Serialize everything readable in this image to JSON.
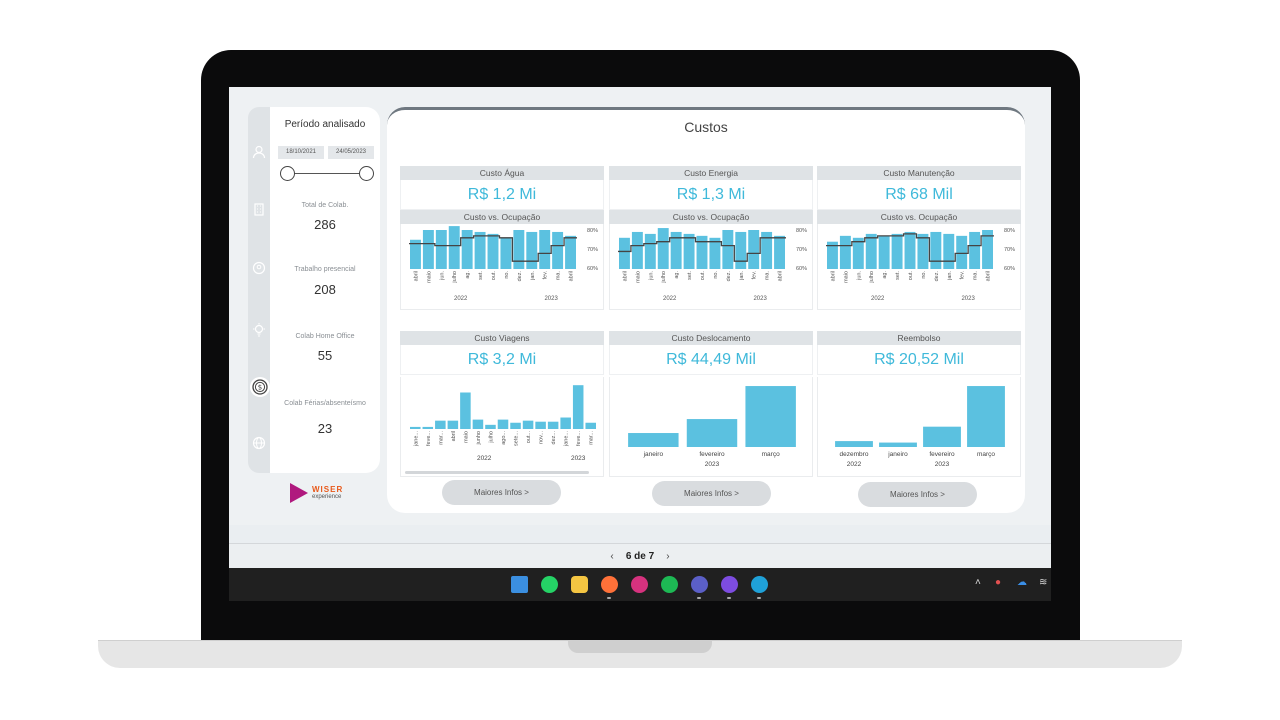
{
  "filters": {
    "title": "Período analisado",
    "date_start": "18/10/2021",
    "date_end": "24/05/2023",
    "stats": [
      {
        "label": "Total de Colab.",
        "value": "286"
      },
      {
        "label": "Trabalho presencial",
        "value": "208"
      },
      {
        "label": "Colab Home Office",
        "value": "55"
      },
      {
        "label": "Colab Férias/absenteísmo",
        "value": "23"
      }
    ]
  },
  "rail": {
    "icons": [
      "user-icon",
      "building-icon",
      "location-icon",
      "lightbulb-icon",
      "dollar-icon",
      "globe-icon"
    ]
  },
  "logo": {
    "word": "WISER",
    "sub": "experience"
  },
  "main": {
    "title": "Custos",
    "subheader": "Custo vs. Ocupação",
    "more_label": "Maiores Infos >",
    "cards": [
      {
        "label": "Custo Água",
        "value": "R$ 1,2 Mi"
      },
      {
        "label": "Custo Energia",
        "value": "R$ 1,3 Mi"
      },
      {
        "label": "Custo Manutenção",
        "value": "R$ 68 Mil"
      },
      {
        "label": "Custo Viagens",
        "value": "R$ 3,2 Mi"
      },
      {
        "label": "Custo Deslocamento",
        "value": "R$ 44,49 Mil"
      },
      {
        "label": "Reembolso",
        "value": "R$ 20,52 Mil"
      }
    ]
  },
  "chart_data": [
    {
      "type": "bar",
      "title": "Custo vs. Ocupação",
      "categories": [
        "abril",
        "maio",
        "jun.",
        "julho",
        "ag.",
        "set.",
        "out.",
        "no.",
        "dez.",
        "jan.",
        "fev.",
        "ma.",
        "abril"
      ],
      "year_labels": [
        "2022",
        "2023"
      ],
      "series": [],
      "values": [
        0.75,
        0.8,
        0.8,
        0.82,
        0.8,
        0.79,
        0.78,
        0.76,
        0.8,
        0.79,
        0.8,
        0.79,
        0.77
      ],
      "line_values": [
        0.73,
        0.73,
        0.72,
        0.72,
        0.76,
        0.77,
        0.77,
        0.76,
        0.64,
        0.64,
        0.68,
        0.72,
        0.76
      ],
      "y2_ticks": [
        "80%",
        "70%",
        "60%"
      ],
      "y2lim": [
        0.6,
        0.8
      ]
    },
    {
      "type": "bar",
      "title": "Custo vs. Ocupação",
      "categories": [
        "abril",
        "maio",
        "jun.",
        "julho",
        "ag.",
        "set.",
        "out.",
        "no.",
        "dez.",
        "jan.",
        "fev.",
        "ma.",
        "abril"
      ],
      "year_labels": [
        "2022",
        "2023"
      ],
      "series": [],
      "values": [
        0.76,
        0.79,
        0.78,
        0.81,
        0.79,
        0.78,
        0.77,
        0.76,
        0.8,
        0.79,
        0.8,
        0.79,
        0.77
      ],
      "line_values": [
        0.69,
        0.72,
        0.73,
        0.74,
        0.76,
        0.76,
        0.74,
        0.74,
        0.72,
        0.64,
        0.68,
        0.76,
        0.76
      ],
      "y2_ticks": [
        "80%",
        "70%",
        "60%"
      ],
      "y2lim": [
        0.6,
        0.8
      ]
    },
    {
      "type": "bar",
      "title": "Custo vs. Ocupação",
      "categories": [
        "abril",
        "maio",
        "jun.",
        "julho",
        "ag.",
        "set.",
        "out.",
        "no.",
        "dez.",
        "jan.",
        "fev.",
        "ma.",
        "abril"
      ],
      "year_labels": [
        "2022",
        "2023"
      ],
      "series": [],
      "values": [
        0.74,
        0.77,
        0.76,
        0.78,
        0.77,
        0.78,
        0.79,
        0.78,
        0.79,
        0.78,
        0.77,
        0.79,
        0.8
      ],
      "line_values": [
        0.72,
        0.72,
        0.74,
        0.76,
        0.77,
        0.77,
        0.78,
        0.76,
        0.64,
        0.64,
        0.68,
        0.72,
        0.77
      ],
      "y2_ticks": [
        "80%",
        "70%",
        "60%"
      ],
      "y2lim": [
        0.6,
        0.8
      ]
    },
    {
      "type": "bar",
      "title": "Custo Viagens",
      "categories": [
        "jane...",
        "feve...",
        "mar...",
        "abril",
        "maio",
        "junho",
        "julho",
        "ago...",
        "sete...",
        "out...",
        "nov...",
        "dez...",
        "jane...",
        "feve...",
        "mar..."
      ],
      "year_labels": [
        "2022",
        "2023"
      ],
      "values": [
        2,
        2,
        8,
        8,
        35,
        9,
        4,
        9,
        6,
        8,
        7,
        7,
        11,
        42,
        6
      ]
    },
    {
      "type": "bar",
      "title": "Custo Deslocamento",
      "categories": [
        "janeiro",
        "fevereiro",
        "março"
      ],
      "year_labels": [
        "2023"
      ],
      "values": [
        11,
        22,
        48
      ]
    },
    {
      "type": "bar",
      "title": "Reembolso",
      "categories": [
        "dezembro",
        "janeiro",
        "fevereiro",
        "março"
      ],
      "year_labels": [
        "2022",
        "2023"
      ],
      "values": [
        1.6,
        1.2,
        5.5,
        16.5
      ]
    }
  ],
  "pager": {
    "label": "6 de 7",
    "prev": "‹",
    "next": "›"
  },
  "taskbar": {
    "apps": [
      "windows-start-icon",
      "whatsapp-icon",
      "file-explorer-icon",
      "firefox-icon",
      "instagram-icon",
      "spotify-icon",
      "teams-icon",
      "canva-icon",
      "edge-icon"
    ],
    "colors": [
      "#3b8fe0",
      "#25d366",
      "#f4c542",
      "#ff7139",
      "#d6327e",
      "#1db954",
      "#5b5fc7",
      "#7d4ce0",
      "#1fa1d8"
    ]
  }
}
